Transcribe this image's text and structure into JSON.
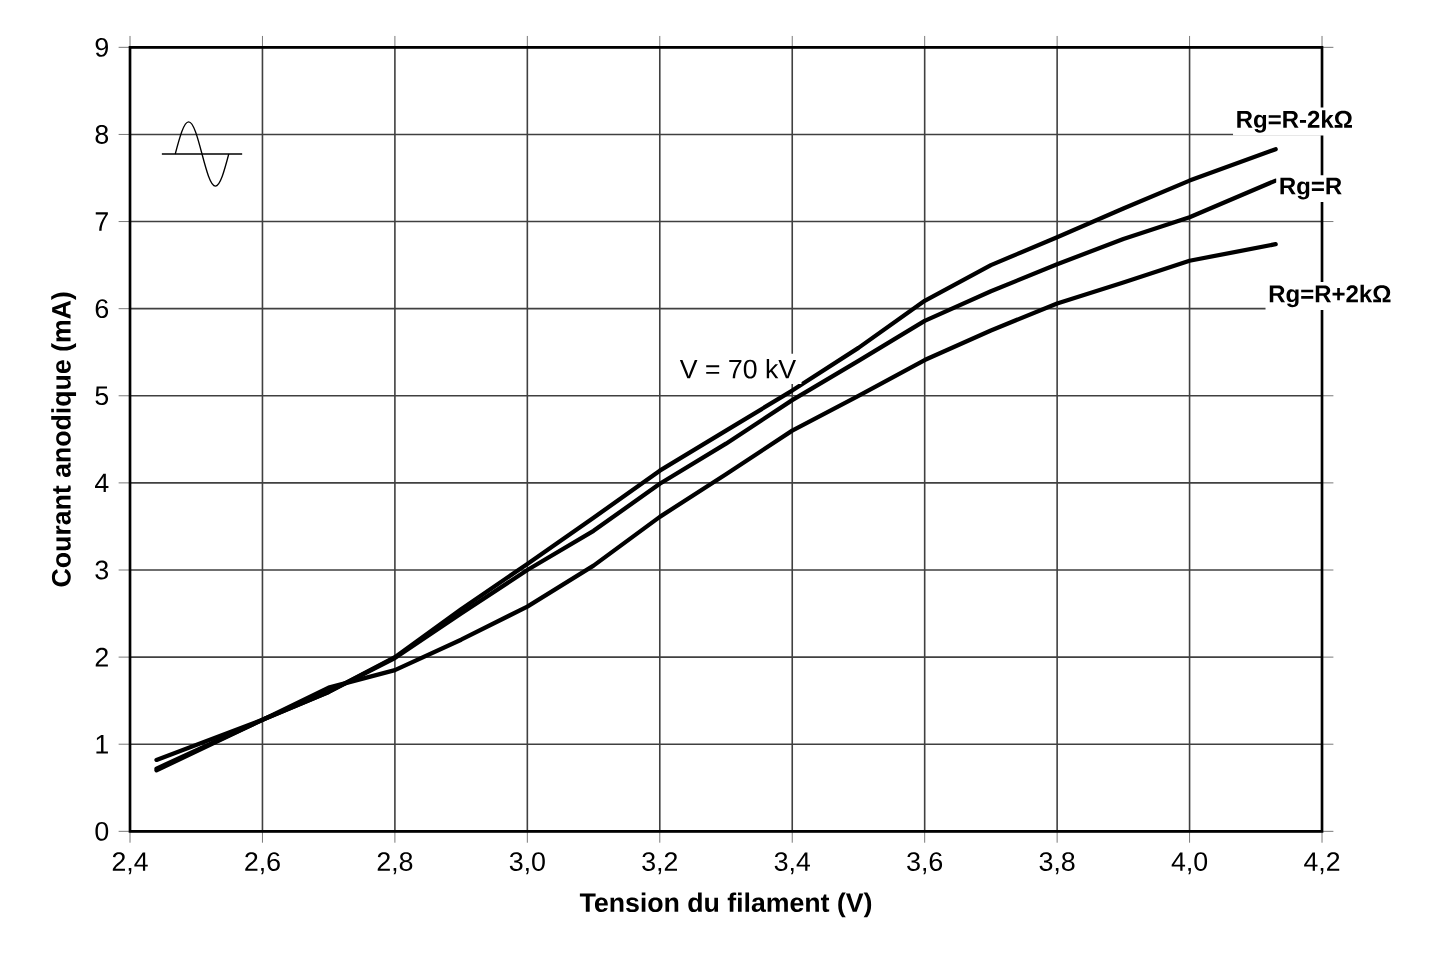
{
  "chart_data": {
    "type": "line",
    "xlabel": "Tension du filament (V)",
    "ylabel": "Courant anodique (mA)",
    "annotations": [
      "V = 70 kV"
    ],
    "x": [
      2.44,
      2.6,
      2.7,
      2.8,
      2.9,
      3.0,
      3.1,
      3.2,
      3.3,
      3.4,
      3.5,
      3.6,
      3.7,
      3.8,
      3.9,
      4.0,
      4.13
    ],
    "series": [
      {
        "name": "Rg=R-2kΩ",
        "color": "#000000",
        "values": [
          0.7,
          1.28,
          1.6,
          2.0,
          2.55,
          3.07,
          3.6,
          4.14,
          4.6,
          5.06,
          5.55,
          6.09,
          6.5,
          6.82,
          7.15,
          7.47,
          7.83
        ]
      },
      {
        "name": "Rg=R",
        "color": "#000000",
        "values": [
          0.72,
          1.28,
          1.6,
          1.99,
          2.5,
          3.0,
          3.45,
          3.99,
          4.45,
          4.95,
          5.4,
          5.86,
          6.2,
          6.51,
          6.8,
          7.05,
          7.47
        ]
      },
      {
        "name": "Rg=R+2kΩ",
        "color": "#000000",
        "values": [
          0.82,
          1.28,
          1.65,
          1.85,
          2.2,
          2.58,
          3.05,
          3.61,
          4.1,
          4.6,
          5.0,
          5.41,
          5.75,
          6.06,
          6.3,
          6.55,
          6.74
        ]
      }
    ],
    "xlim": [
      2.4,
      4.2
    ],
    "ylim": [
      0,
      9
    ],
    "xticks": [
      {
        "value": 2.4,
        "label": "2,4"
      },
      {
        "value": 2.6,
        "label": "2,6"
      },
      {
        "value": 2.8,
        "label": "2,8"
      },
      {
        "value": 3.0,
        "label": "3,0"
      },
      {
        "value": 3.2,
        "label": "3,2"
      },
      {
        "value": 3.4,
        "label": "3,4"
      },
      {
        "value": 3.6,
        "label": "3,6"
      },
      {
        "value": 3.8,
        "label": "3,8"
      },
      {
        "value": 4.0,
        "label": "4,0"
      },
      {
        "value": 4.2,
        "label": "4,2"
      }
    ],
    "yticks": [
      0,
      1,
      2,
      3,
      4,
      5,
      6,
      7,
      8,
      9
    ],
    "grid": true,
    "marker": "none",
    "line_style": "solid",
    "legend": false
  }
}
